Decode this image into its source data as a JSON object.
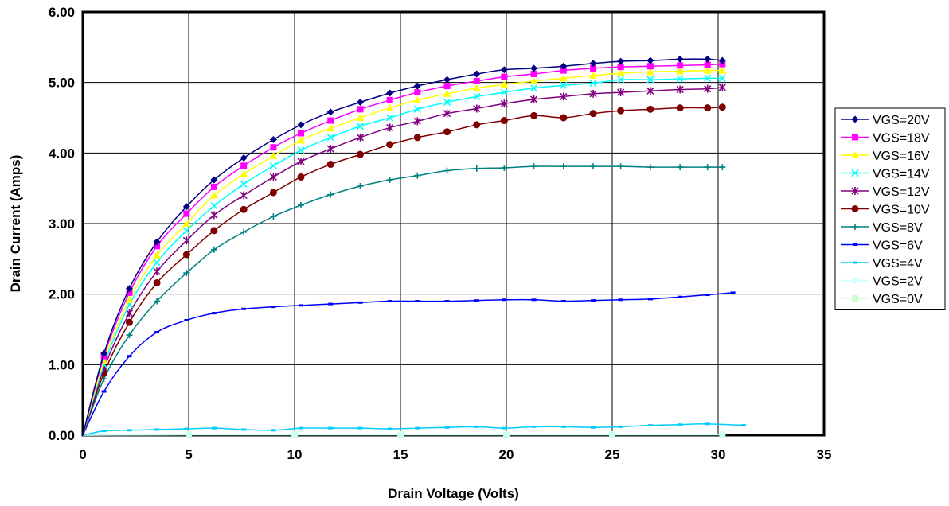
{
  "chart_data": {
    "type": "line",
    "xlabel": "Drain Voltage (Volts)",
    "ylabel": "Drain Current (Amps)",
    "xlim": [
      0,
      35
    ],
    "ylim": [
      0,
      6
    ],
    "x_ticks": [
      "0",
      "5",
      "10",
      "15",
      "20",
      "25",
      "30",
      "35"
    ],
    "y_ticks": [
      "0.00",
      "1.00",
      "2.00",
      "3.00",
      "4.00",
      "5.00",
      "6.00"
    ],
    "grid": true,
    "legend_position": "right",
    "series": [
      {
        "name": "VGS=20V",
        "color": "#000080",
        "marker": "diamond",
        "x": [
          0,
          1,
          2.2,
          3.5,
          4.9,
          6.2,
          7.6,
          9,
          10.3,
          11.7,
          13.1,
          14.5,
          15.8,
          17.2,
          18.6,
          19.9,
          21.3,
          22.7,
          24.1,
          25.4,
          26.8,
          28.2,
          29.5,
          30.2
        ],
        "y": [
          0,
          1.16,
          2.08,
          2.74,
          3.24,
          3.62,
          3.93,
          4.19,
          4.4,
          4.58,
          4.72,
          4.85,
          4.95,
          5.04,
          5.12,
          5.18,
          5.2,
          5.23,
          5.27,
          5.3,
          5.31,
          5.33,
          5.33,
          5.31
        ]
      },
      {
        "name": "VGS=18V",
        "color": "#ff00ff",
        "marker": "square",
        "x": [
          0,
          1,
          2.2,
          3.5,
          4.9,
          6.2,
          7.6,
          9,
          10.3,
          11.7,
          13.1,
          14.5,
          15.8,
          17.2,
          18.6,
          19.9,
          21.3,
          22.7,
          24.1,
          25.4,
          26.8,
          28.2,
          29.5,
          30.2
        ],
        "y": [
          0,
          1.12,
          2.02,
          2.68,
          3.14,
          3.52,
          3.82,
          4.08,
          4.28,
          4.46,
          4.62,
          4.75,
          4.86,
          4.95,
          5.02,
          5.08,
          5.12,
          5.17,
          5.2,
          5.22,
          5.23,
          5.24,
          5.25,
          5.26
        ]
      },
      {
        "name": "VGS=16V",
        "color": "#ffff00",
        "marker": "triangle",
        "x": [
          0,
          1,
          2.2,
          3.5,
          4.9,
          6.2,
          7.6,
          9,
          10.3,
          11.7,
          13.1,
          14.5,
          15.8,
          17.2,
          18.6,
          19.9,
          21.3,
          22.7,
          24.1,
          25.4,
          26.8,
          28.2,
          29.5,
          30.2
        ],
        "y": [
          0,
          1.05,
          1.92,
          2.55,
          3.0,
          3.4,
          3.7,
          3.96,
          4.18,
          4.35,
          4.5,
          4.64,
          4.75,
          4.84,
          4.92,
          4.97,
          5.02,
          5.06,
          5.1,
          5.13,
          5.15,
          5.16,
          5.17,
          5.17
        ]
      },
      {
        "name": "VGS=14V",
        "color": "#00ffff",
        "marker": "x",
        "x": [
          0,
          1,
          2.2,
          3.5,
          4.9,
          6.2,
          7.6,
          9,
          10.3,
          11.7,
          13.1,
          14.5,
          15.8,
          17.2,
          18.6,
          19.9,
          21.3,
          22.7,
          24.1,
          25.4,
          26.8,
          28.2,
          29.5,
          30.2
        ],
        "y": [
          0,
          1.0,
          1.85,
          2.45,
          2.9,
          3.25,
          3.56,
          3.82,
          4.04,
          4.22,
          4.38,
          4.5,
          4.62,
          4.72,
          4.8,
          4.86,
          4.92,
          4.96,
          4.99,
          5.04,
          5.04,
          5.05,
          5.06,
          5.06
        ]
      },
      {
        "name": "VGS=12V",
        "color": "#800080",
        "marker": "star",
        "x": [
          0,
          1,
          2.2,
          3.5,
          4.9,
          6.2,
          7.6,
          9,
          10.3,
          11.7,
          13.1,
          14.5,
          15.8,
          17.2,
          18.6,
          19.9,
          21.3,
          22.7,
          24.1,
          25.4,
          26.8,
          28.2,
          29.5,
          30.2
        ],
        "y": [
          0,
          0.95,
          1.73,
          2.32,
          2.76,
          3.12,
          3.4,
          3.66,
          3.88,
          4.06,
          4.22,
          4.36,
          4.45,
          4.56,
          4.63,
          4.7,
          4.76,
          4.8,
          4.84,
          4.86,
          4.88,
          4.9,
          4.91,
          4.93
        ]
      },
      {
        "name": "VGS=10V",
        "color": "#800000",
        "marker": "circle",
        "x": [
          0,
          1,
          2.2,
          3.5,
          4.9,
          6.2,
          7.6,
          9,
          10.3,
          11.7,
          13.1,
          14.5,
          15.8,
          17.2,
          18.6,
          19.9,
          21.3,
          22.7,
          24.1,
          25.4,
          26.8,
          28.2,
          29.5,
          30.2
        ],
        "y": [
          0,
          0.88,
          1.6,
          2.16,
          2.56,
          2.9,
          3.2,
          3.44,
          3.66,
          3.84,
          3.98,
          4.12,
          4.22,
          4.3,
          4.4,
          4.46,
          4.53,
          4.5,
          4.56,
          4.6,
          4.62,
          4.64,
          4.64,
          4.65
        ]
      },
      {
        "name": "VGS=8V",
        "color": "#008080",
        "marker": "plus",
        "x": [
          0,
          1,
          2.2,
          3.5,
          4.9,
          6.2,
          7.6,
          9,
          10.3,
          11.7,
          13.1,
          14.5,
          15.8,
          17.2,
          18.6,
          19.9,
          21.3,
          22.7,
          24.1,
          25.4,
          26.8,
          28.2,
          29.5,
          30.2
        ],
        "y": [
          0,
          0.8,
          1.42,
          1.9,
          2.3,
          2.63,
          2.88,
          3.1,
          3.26,
          3.41,
          3.53,
          3.62,
          3.68,
          3.75,
          3.78,
          3.79,
          3.81,
          3.81,
          3.81,
          3.81,
          3.8,
          3.8,
          3.8,
          3.8
        ]
      },
      {
        "name": "VGS=6V",
        "color": "#0000ff",
        "marker": "dash",
        "x": [
          0,
          1,
          2.2,
          3.5,
          4.9,
          6.2,
          7.6,
          9,
          10.3,
          11.7,
          13.1,
          14.5,
          15.8,
          17.2,
          18.6,
          19.9,
          21.3,
          22.7,
          24.1,
          25.4,
          26.8,
          28.2,
          29.5,
          30.7
        ],
        "y": [
          0,
          0.62,
          1.12,
          1.46,
          1.63,
          1.73,
          1.79,
          1.82,
          1.84,
          1.86,
          1.88,
          1.9,
          1.9,
          1.9,
          1.91,
          1.92,
          1.92,
          1.9,
          1.91,
          1.92,
          1.93,
          1.96,
          1.99,
          2.02
        ]
      },
      {
        "name": "VGS=4V",
        "color": "#00ccff",
        "marker": "dash",
        "x": [
          0,
          1,
          2.2,
          3.5,
          4.9,
          6.2,
          7.6,
          9,
          10.3,
          11.7,
          13.1,
          14.5,
          15.8,
          17.2,
          18.6,
          19.9,
          21.3,
          22.7,
          24.1,
          25.4,
          26.8,
          28.2,
          29.5,
          31.2
        ],
        "y": [
          0,
          0.06,
          0.07,
          0.08,
          0.09,
          0.1,
          0.08,
          0.07,
          0.1,
          0.1,
          0.1,
          0.09,
          0.1,
          0.11,
          0.12,
          0.1,
          0.12,
          0.12,
          0.11,
          0.12,
          0.14,
          0.15,
          0.16,
          0.14
        ]
      },
      {
        "name": "VGS=2V",
        "color": "#ccffff",
        "marker": "diamond",
        "x": [
          0,
          5,
          10,
          15,
          20,
          25,
          30.2
        ],
        "y": [
          0,
          0.01,
          0.01,
          0.01,
          0.01,
          0.01,
          0.01
        ]
      },
      {
        "name": "VGS=0V",
        "color": "#ccffcc",
        "marker": "square",
        "x": [
          0,
          5,
          10,
          15,
          20,
          25,
          30.2
        ],
        "y": [
          0,
          0.005,
          0.005,
          0.005,
          0.005,
          0.005,
          0.005
        ]
      }
    ]
  }
}
